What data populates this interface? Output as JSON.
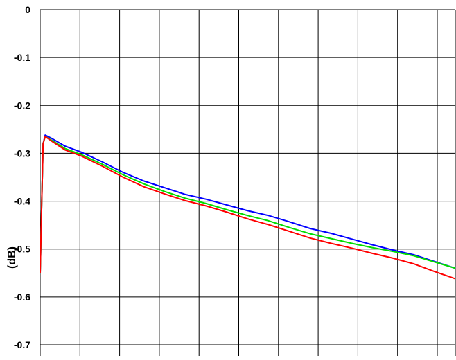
{
  "chart_data": {
    "type": "line",
    "title": "",
    "xlabel": "",
    "ylabel": "(dB)",
    "ylim": [
      -0.72,
      0
    ],
    "yticks": [
      0,
      -0.1,
      -0.2,
      -0.3,
      -0.4,
      -0.5,
      -0.6,
      -0.7
    ],
    "ytick_labels": [
      "0",
      "-0.1",
      "-0.2",
      "-0.3",
      "-0.4",
      "-0.5",
      "-0.6",
      "-0.7"
    ],
    "x_gridlines": 11,
    "xlim": [
      0,
      1
    ],
    "grid": true,
    "series": [
      {
        "color": "#0000ff",
        "x": [
          0,
          0.003,
          0.007,
          0.012,
          0.03,
          0.06,
          0.1,
          0.15,
          0.2,
          0.25,
          0.3,
          0.35,
          0.4,
          0.45,
          0.5,
          0.55,
          0.6,
          0.65,
          0.7,
          0.75,
          0.8,
          0.85,
          0.9,
          0.95,
          1.0
        ],
        "values": [
          -0.55,
          -0.43,
          -0.28,
          -0.262,
          -0.27,
          -0.285,
          -0.298,
          -0.318,
          -0.34,
          -0.358,
          -0.372,
          -0.386,
          -0.396,
          -0.408,
          -0.42,
          -0.43,
          -0.443,
          -0.457,
          -0.467,
          -0.479,
          -0.491,
          -0.502,
          -0.512,
          -0.526,
          -0.54
        ]
      },
      {
        "color": "#00dd00",
        "x": [
          0,
          0.003,
          0.007,
          0.012,
          0.03,
          0.06,
          0.1,
          0.15,
          0.2,
          0.25,
          0.3,
          0.35,
          0.4,
          0.45,
          0.5,
          0.55,
          0.6,
          0.65,
          0.7,
          0.75,
          0.8,
          0.85,
          0.9,
          0.95,
          1.0
        ],
        "values": [
          -0.55,
          -0.43,
          -0.28,
          -0.265,
          -0.274,
          -0.29,
          -0.303,
          -0.323,
          -0.345,
          -0.364,
          -0.38,
          -0.394,
          -0.405,
          -0.418,
          -0.43,
          -0.441,
          -0.455,
          -0.468,
          -0.478,
          -0.488,
          -0.497,
          -0.505,
          -0.514,
          -0.527,
          -0.54
        ]
      },
      {
        "color": "#ff0000",
        "x": [
          0,
          0.003,
          0.007,
          0.012,
          0.03,
          0.06,
          0.1,
          0.15,
          0.2,
          0.25,
          0.3,
          0.35,
          0.4,
          0.45,
          0.5,
          0.55,
          0.6,
          0.65,
          0.7,
          0.75,
          0.8,
          0.85,
          0.9,
          0.95,
          1.0
        ],
        "values": [
          -0.55,
          -0.43,
          -0.28,
          -0.265,
          -0.276,
          -0.293,
          -0.306,
          -0.327,
          -0.35,
          -0.37,
          -0.385,
          -0.399,
          -0.41,
          -0.423,
          -0.437,
          -0.449,
          -0.463,
          -0.477,
          -0.488,
          -0.498,
          -0.509,
          -0.519,
          -0.531,
          -0.547,
          -0.562
        ]
      }
    ]
  }
}
